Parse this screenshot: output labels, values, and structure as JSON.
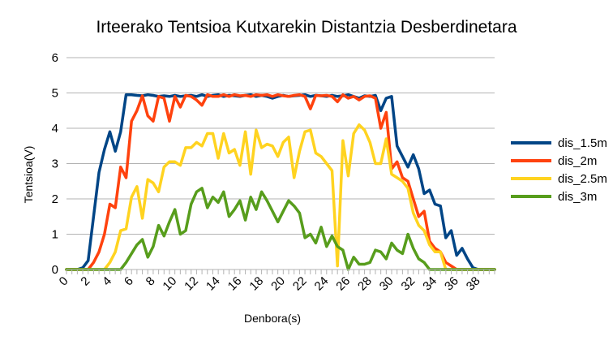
{
  "chart_data": {
    "type": "line",
    "title": "Irteerako Tentsioa Kutxarekin Distantzia Desberdinetara",
    "xlabel": "Denbora(s)",
    "ylabel": "Tentsioa(V)",
    "ylim": [
      0,
      6
    ],
    "xlim": [
      0,
      39.5
    ],
    "yticks": [
      "0",
      "1",
      "2",
      "3",
      "4",
      "5",
      "6"
    ],
    "xticks": [
      "0",
      "2",
      "4",
      "6",
      "8",
      "10",
      "12",
      "14",
      "16",
      "18",
      "20",
      "22",
      "24",
      "26",
      "28",
      "30",
      "32",
      "34",
      "36",
      "38"
    ],
    "grid": "horizontal",
    "legend_position": "right",
    "series": [
      {
        "name": "dis_1.5m",
        "color": "#004586",
        "x": [
          0,
          0.5,
          1,
          1.5,
          2,
          2.5,
          3,
          3.5,
          4,
          4.5,
          5,
          5.5,
          6,
          6.5,
          7,
          7.5,
          8,
          8.5,
          9,
          9.5,
          10,
          10.5,
          11,
          11.5,
          12,
          12.5,
          13,
          13.5,
          14,
          14.5,
          15,
          15.5,
          16,
          16.5,
          17,
          17.5,
          18,
          18.5,
          19,
          19.5,
          20,
          20.5,
          21,
          21.5,
          22,
          22.5,
          23,
          23.5,
          24,
          24.5,
          25,
          25.5,
          26,
          26.5,
          27,
          27.5,
          28,
          28.5,
          29,
          29.5,
          30,
          30.5,
          31,
          31.5,
          32,
          32.5,
          33,
          33.5,
          34,
          34.5,
          35,
          35.5,
          36,
          36.5,
          37,
          37.5,
          38,
          38.5,
          39,
          39.5
        ],
        "values": [
          0,
          0,
          0,
          0.05,
          0.25,
          1.5,
          2.75,
          3.4,
          3.9,
          3.35,
          3.9,
          4.95,
          4.95,
          4.93,
          4.92,
          4.95,
          4.93,
          4.9,
          4.92,
          4.9,
          4.93,
          4.9,
          4.92,
          4.93,
          4.9,
          4.95,
          4.9,
          4.93,
          4.95,
          4.9,
          4.93,
          4.92,
          4.9,
          4.93,
          4.95,
          4.9,
          4.93,
          4.9,
          4.85,
          4.9,
          4.93,
          4.9,
          4.92,
          4.93,
          4.95,
          4.9,
          4.93,
          4.92,
          4.9,
          4.93,
          4.9,
          4.92,
          4.95,
          4.9,
          4.85,
          4.92,
          4.9,
          4.93,
          4.5,
          4.85,
          4.9,
          3.5,
          3.2,
          2.9,
          3.25,
          2.85,
          2.15,
          2.25,
          1.85,
          1.8,
          0.9,
          1.1,
          0.4,
          0.6,
          0.3,
          0.05,
          0,
          0,
          0,
          0
        ]
      },
      {
        "name": "dis_2m",
        "color": "#ff420e",
        "x": [
          0,
          0.5,
          1,
          1.5,
          2,
          2.5,
          3,
          3.5,
          4,
          4.5,
          5,
          5.5,
          6,
          6.5,
          7,
          7.5,
          8,
          8.5,
          9,
          9.5,
          10,
          10.5,
          11,
          11.5,
          12,
          12.5,
          13,
          13.5,
          14,
          14.5,
          15,
          15.5,
          16,
          16.5,
          17,
          17.5,
          18,
          18.5,
          19,
          19.5,
          20,
          20.5,
          21,
          21.5,
          22,
          22.5,
          23,
          23.5,
          24,
          24.5,
          25,
          25.5,
          26,
          26.5,
          27,
          27.5,
          28,
          28.5,
          29,
          29.5,
          30,
          30.5,
          31,
          31.5,
          32,
          32.5,
          33,
          33.5,
          34,
          34.5,
          35,
          35.5,
          36,
          36.5,
          37,
          37.5,
          38,
          38.5,
          39,
          39.5
        ],
        "values": [
          0,
          0,
          0,
          0,
          0,
          0.2,
          0.5,
          1,
          1.85,
          1.75,
          2.9,
          2.6,
          4.2,
          4.5,
          4.92,
          4.35,
          4.2,
          4.9,
          4.85,
          4.2,
          4.9,
          4.6,
          4.93,
          4.9,
          4.8,
          4.65,
          4.95,
          4.9,
          4.9,
          4.95,
          4.9,
          4.95,
          4.92,
          4.93,
          4.9,
          4.95,
          4.93,
          4.95,
          4.9,
          4.95,
          4.92,
          4.9,
          4.93,
          4.95,
          4.9,
          4.55,
          4.93,
          4.92,
          4.93,
          4.9,
          4.75,
          4.95,
          4.85,
          4.9,
          4.8,
          4.9,
          4.92,
          4.85,
          4,
          4.45,
          2.85,
          3.05,
          2.6,
          2.5,
          2,
          1.5,
          1.65,
          0.8,
          0.6,
          0.5,
          0.2,
          0.1,
          0,
          0,
          0,
          0,
          0,
          0,
          0,
          0
        ]
      },
      {
        "name": "dis_2.5m",
        "color": "#ffd320",
        "x": [
          0,
          0.5,
          1,
          1.5,
          2,
          2.5,
          3,
          3.5,
          4,
          4.5,
          5,
          5.5,
          6,
          6.5,
          7,
          7.5,
          8,
          8.5,
          9,
          9.5,
          10,
          10.5,
          11,
          11.5,
          12,
          12.5,
          13,
          13.5,
          14,
          14.5,
          15,
          15.5,
          16,
          16.5,
          17,
          17.5,
          18,
          18.5,
          19,
          19.5,
          20,
          20.5,
          21,
          21.5,
          22,
          22.5,
          23,
          23.5,
          24,
          24.5,
          25,
          25.5,
          26,
          26.5,
          27,
          27.5,
          28,
          28.5,
          29,
          29.5,
          30,
          30.5,
          31,
          31.5,
          32,
          32.5,
          33,
          33.5,
          34,
          34.5,
          35,
          35.5,
          36,
          36.5,
          37,
          37.5,
          38,
          38.5,
          39,
          39.5
        ],
        "values": [
          0,
          0,
          0,
          0,
          0,
          0,
          0,
          0,
          0.2,
          0.5,
          1.1,
          1.15,
          2.05,
          2.35,
          1.45,
          2.55,
          2.45,
          2.2,
          2.9,
          3.05,
          3.05,
          2.95,
          3.45,
          3.45,
          3.6,
          3.5,
          3.85,
          3.85,
          3.15,
          3.85,
          3.3,
          3.4,
          2.95,
          3.9,
          2.7,
          3.95,
          3.45,
          3.55,
          3.5,
          3.2,
          3.6,
          3.75,
          2.6,
          3.35,
          3.9,
          3.95,
          3.3,
          3.2,
          3,
          2.8,
          0.1,
          3.65,
          2.65,
          3.85,
          4.1,
          3.95,
          3.6,
          3,
          3,
          3.7,
          2.7,
          2.6,
          2.5,
          2.3,
          1.6,
          1.25,
          1.1,
          0.7,
          0.5,
          0.5,
          0,
          0,
          0,
          0,
          0,
          0,
          0,
          0,
          0,
          0
        ]
      },
      {
        "name": "dis_3m",
        "color": "#579d1c",
        "x": [
          0,
          0.5,
          1,
          1.5,
          2,
          2.5,
          3,
          3.5,
          4,
          4.5,
          5,
          5.5,
          6,
          6.5,
          7,
          7.5,
          8,
          8.5,
          9,
          9.5,
          10,
          10.5,
          11,
          11.5,
          12,
          12.5,
          13,
          13.5,
          14,
          14.5,
          15,
          15.5,
          16,
          16.5,
          17,
          17.5,
          18,
          18.5,
          19,
          19.5,
          20,
          20.5,
          21,
          21.5,
          22,
          22.5,
          23,
          23.5,
          24,
          24.5,
          25,
          25.5,
          26,
          26.5,
          27,
          27.5,
          28,
          28.5,
          29,
          29.5,
          30,
          30.5,
          31,
          31.5,
          32,
          32.5,
          33,
          33.5,
          34,
          34.5,
          35,
          35.5,
          36,
          36.5,
          37,
          37.5,
          38,
          38.5,
          39,
          39.5
        ],
        "values": [
          0,
          0,
          0,
          0,
          0,
          0,
          0,
          0,
          0,
          0,
          0,
          0.2,
          0.45,
          0.7,
          0.85,
          0.35,
          0.65,
          1.25,
          0.95,
          1.35,
          1.7,
          1.0,
          1.1,
          1.85,
          2.2,
          2.3,
          1.75,
          2.05,
          1.9,
          2.2,
          1.5,
          1.7,
          1.95,
          1.4,
          2.05,
          1.7,
          2.2,
          1.95,
          1.65,
          1.35,
          1.65,
          1.95,
          1.8,
          1.6,
          0.9,
          1,
          0.75,
          1.2,
          0.65,
          0.95,
          0.65,
          0.55,
          0,
          0.35,
          0.15,
          0.15,
          0.2,
          0.55,
          0.5,
          0.3,
          0.75,
          0.55,
          0.45,
          1.0,
          0.6,
          0.3,
          0.2,
          0,
          0,
          0,
          0,
          0,
          0,
          0,
          0,
          0,
          0,
          0,
          0,
          0
        ]
      }
    ]
  }
}
